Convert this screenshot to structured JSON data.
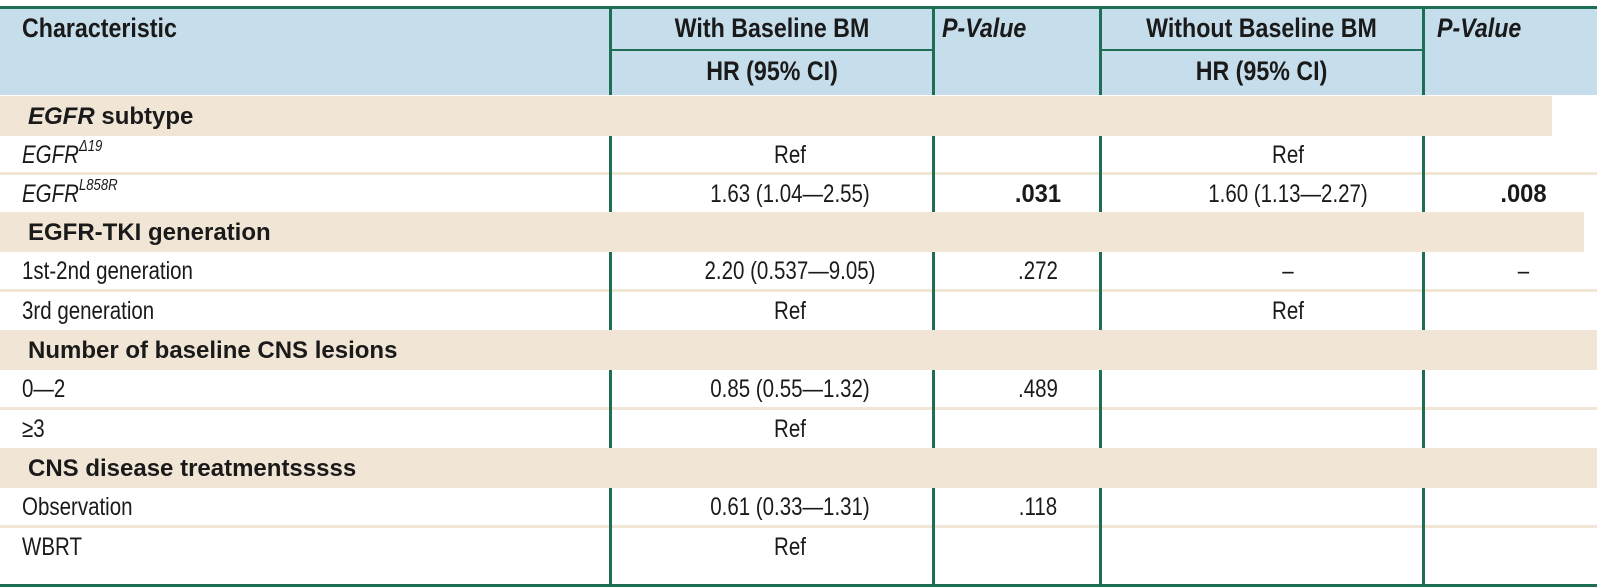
{
  "header": {
    "characteristic": "Characteristic",
    "with_bm": "With Baseline BM",
    "without_bm": "Without Baseline BM",
    "p_value_1": "P-Value",
    "p_value_2": "P-Value",
    "hr_ci_1": "HR (95% CI)",
    "hr_ci_2": "HR (95% CI)"
  },
  "sections": [
    {
      "title_em": "EGFR",
      "title_rest": " subtype",
      "rows": [
        {
          "label": "EGFR",
          "label_sup": "Δ19",
          "with_hr": "Ref",
          "with_p": "",
          "without_hr": "Ref",
          "without_p": ""
        },
        {
          "label": "EGFR",
          "label_sup": "L858R",
          "with_hr": "1.63 (1.04—2.55)",
          "with_p": ".031",
          "without_hr": "1.60 (1.13—2.27)",
          "without_p": ".008"
        }
      ]
    },
    {
      "title_em": "",
      "title_rest": "EGFR-TKI generation",
      "rows": [
        {
          "label": "1st-2nd generation",
          "with_hr": "2.20 (0.537—9.05)",
          "with_p": ".272",
          "without_hr": "–",
          "without_p": "–"
        },
        {
          "label": "3rd generation",
          "with_hr": "Ref",
          "with_p": "",
          "without_hr": "Ref",
          "without_p": ""
        }
      ]
    },
    {
      "title_em": "",
      "title_rest": "Number of baseline CNS lesions",
      "rows": [
        {
          "label": "0—2",
          "with_hr": "0.85 (0.55—1.32)",
          "with_p": ".489",
          "without_hr": "",
          "without_p": ""
        },
        {
          "label": "≥3",
          "with_hr": "Ref",
          "with_p": "",
          "without_hr": "",
          "without_p": ""
        }
      ]
    },
    {
      "title_em": "",
      "title_rest": "CNS disease treatmentsssss",
      "rows": [
        {
          "label": "Observation",
          "with_hr": "0.61 (0.33—1.31)",
          "with_p": ".118",
          "without_hr": "",
          "without_p": ""
        },
        {
          "label": "WBRT",
          "with_hr": "Ref",
          "with_p": "",
          "without_hr": "",
          "without_p": ""
        }
      ]
    }
  ],
  "colors": {
    "header_bg": "#c6deeb",
    "section_bg": "#f1e6d6",
    "rule": "#1e6e55"
  }
}
